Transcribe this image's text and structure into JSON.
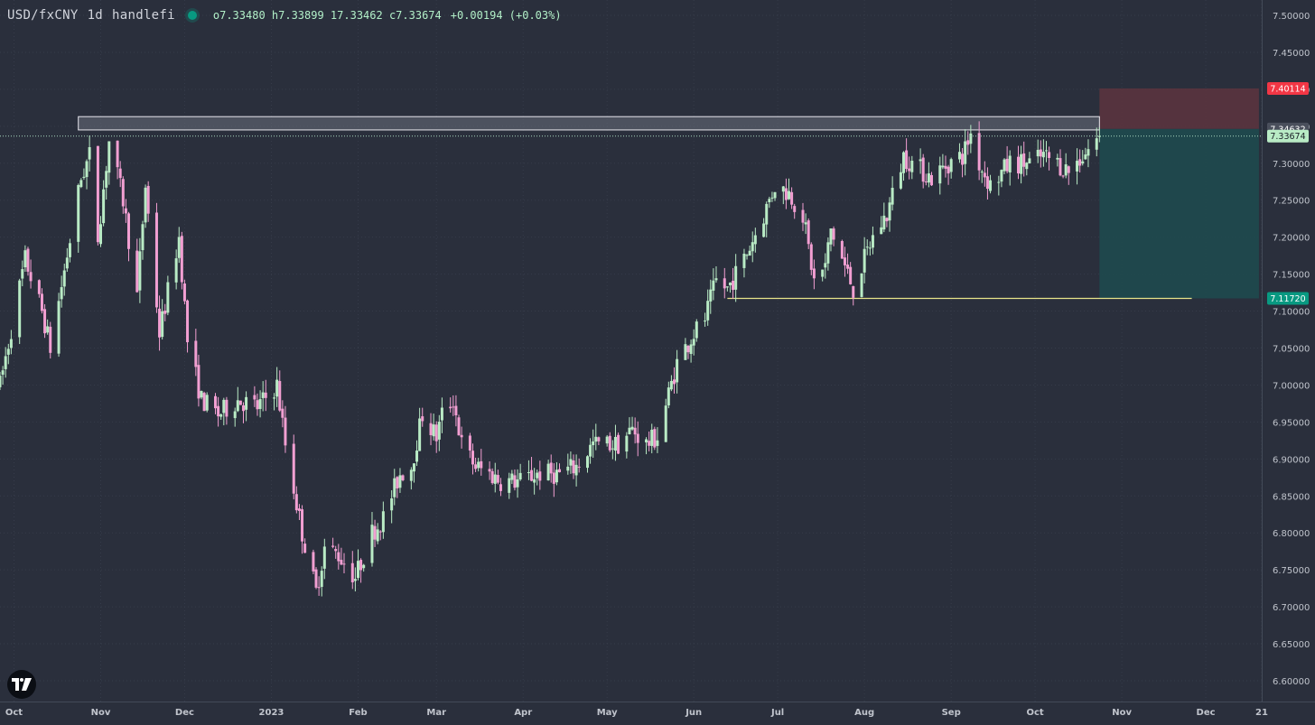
{
  "header": {
    "symbol": "USD/fxCNY",
    "interval": "1d",
    "author": "handlefi",
    "ohlc": "o7.33480 h7.33899 17.33462 c7.33674",
    "change": "+0.00194 (+0.03%)"
  },
  "colors": {
    "background": "#2a2f3c",
    "up_candle": "#b9ebc5",
    "down_candle": "#f29fd2",
    "grid": "#363c4a",
    "axis_text": "#c0c4cc",
    "stop_zone": "#5a343e",
    "target_zone": "#1e4a4e",
    "resistance_box": "#6a6f7c",
    "support_line": "#e8e48a",
    "stop_label": "#f23645",
    "target_label": "#089981",
    "last_price_label": "#b9ebc5"
  },
  "icons": {
    "logo": "tradingview-logo-icon"
  },
  "chart_data": {
    "type": "candlestick",
    "title": "USD/fxCNY 1d handlefi",
    "ylim": [
      6.58,
      7.52
    ],
    "y_ticks": [
      "7.50000",
      "7.45000",
      "7.40000",
      "7.35000",
      "7.30000",
      "7.25000",
      "7.20000",
      "7.15000",
      "7.10000",
      "7.05000",
      "7.00000",
      "6.95000",
      "6.90000",
      "6.85000",
      "6.80000",
      "6.75000",
      "6.70000",
      "6.65000",
      "6.60000"
    ],
    "x_ticks": [
      "Oct",
      "Nov",
      "Dec",
      "2023",
      "Feb",
      "Mar",
      "Apr",
      "May",
      "Jun",
      "Jul",
      "Aug",
      "Sep",
      "Oct",
      "Nov",
      "Dec",
      "21"
    ],
    "x_range": [
      "2022-09-26",
      "2023-12-21"
    ],
    "last_price": {
      "value": 7.33674,
      "label": "7.33674"
    },
    "price_labels": [
      {
        "value": 7.40114,
        "label": "7.40114",
        "kind": "stop"
      },
      {
        "value": 7.34632,
        "label": "7.34632",
        "kind": "entry"
      },
      {
        "value": 7.1172,
        "label": "7.11720",
        "kind": "target"
      }
    ],
    "resistance_zone": {
      "from": "2022-10-24",
      "to": "2023-10-24",
      "low": 7.345,
      "high": 7.363
    },
    "support_line": {
      "from": "2023-06-13",
      "to": "2023-11-26",
      "value": 7.1172
    },
    "position": {
      "from": "2023-10-24",
      "to": "2023-12-20",
      "entry": 7.34632,
      "stop": 7.40114,
      "target": 7.1172
    },
    "waypoints": [
      [
        "2022-09-26",
        7.0
      ],
      [
        "2022-10-05",
        7.17
      ],
      [
        "2022-10-11",
        7.1
      ],
      [
        "2022-10-14",
        7.05
      ],
      [
        "2022-10-25",
        7.28
      ],
      [
        "2022-10-28",
        7.31
      ],
      [
        "2022-10-31",
        7.2
      ],
      [
        "2022-11-04",
        7.33
      ],
      [
        "2022-11-09",
        7.25
      ],
      [
        "2022-11-14",
        7.12
      ],
      [
        "2022-11-17",
        7.27
      ],
      [
        "2022-11-22",
        7.07
      ],
      [
        "2022-11-29",
        7.2
      ],
      [
        "2022-12-02",
        7.06
      ],
      [
        "2022-12-07",
        6.98
      ],
      [
        "2022-12-13",
        6.96
      ],
      [
        "2022-12-20",
        6.98
      ],
      [
        "2022-12-27",
        6.97
      ],
      [
        "2023-01-03",
        7.0
      ],
      [
        "2023-01-06",
        6.92
      ],
      [
        "2023-01-12",
        6.8
      ],
      [
        "2023-01-17",
        6.72
      ],
      [
        "2023-01-20",
        6.78
      ],
      [
        "2023-01-25",
        6.77
      ],
      [
        "2023-01-31",
        6.74
      ],
      [
        "2023-02-06",
        6.8
      ],
      [
        "2023-02-10",
        6.82
      ],
      [
        "2023-02-16",
        6.88
      ],
      [
        "2023-02-20",
        6.89
      ],
      [
        "2023-02-24",
        6.96
      ],
      [
        "2023-03-01",
        6.93
      ],
      [
        "2023-03-03",
        6.96
      ],
      [
        "2023-03-07",
        6.98
      ],
      [
        "2023-03-10",
        6.92
      ],
      [
        "2023-03-15",
        6.89
      ],
      [
        "2023-03-20",
        6.88
      ],
      [
        "2023-03-24",
        6.87
      ],
      [
        "2023-03-31",
        6.87
      ],
      [
        "2023-04-06",
        6.88
      ],
      [
        "2023-04-14",
        6.88
      ],
      [
        "2023-04-20",
        6.89
      ],
      [
        "2023-04-26",
        6.92
      ],
      [
        "2023-05-05",
        6.92
      ],
      [
        "2023-05-10",
        6.94
      ],
      [
        "2023-05-15",
        6.92
      ],
      [
        "2023-05-19",
        6.93
      ],
      [
        "2023-05-26",
        7.03
      ],
      [
        "2023-06-01",
        7.07
      ],
      [
        "2023-06-05",
        7.09
      ],
      [
        "2023-06-09",
        7.14
      ],
      [
        "2023-06-13",
        7.13
      ],
      [
        "2023-06-19",
        7.17
      ],
      [
        "2023-06-26",
        7.23
      ],
      [
        "2023-06-30",
        7.27
      ],
      [
        "2023-07-05",
        7.26
      ],
      [
        "2023-07-10",
        7.23
      ],
      [
        "2023-07-14",
        7.14
      ],
      [
        "2023-07-18",
        7.16
      ],
      [
        "2023-07-20",
        7.21
      ],
      [
        "2023-07-24",
        7.17
      ],
      [
        "2023-07-28",
        7.13
      ],
      [
        "2023-08-01",
        7.17
      ],
      [
        "2023-08-04",
        7.2
      ],
      [
        "2023-08-09",
        7.23
      ],
      [
        "2023-08-15",
        7.31
      ],
      [
        "2023-08-18",
        7.3
      ],
      [
        "2023-08-25",
        7.28
      ],
      [
        "2023-08-31",
        7.3
      ],
      [
        "2023-09-05",
        7.31
      ],
      [
        "2023-09-08",
        7.34
      ],
      [
        "2023-09-11",
        7.3
      ],
      [
        "2023-09-15",
        7.27
      ],
      [
        "2023-09-22",
        7.3
      ],
      [
        "2023-09-29",
        7.3
      ],
      [
        "2023-10-04",
        7.31
      ],
      [
        "2023-10-09",
        7.3
      ],
      [
        "2023-10-13",
        7.29
      ],
      [
        "2023-10-18",
        7.31
      ],
      [
        "2023-10-24",
        7.3367
      ]
    ]
  }
}
